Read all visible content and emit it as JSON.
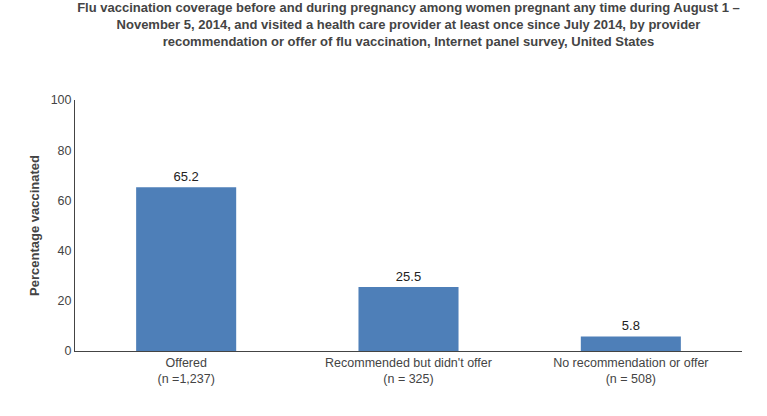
{
  "chart_data": {
    "type": "bar",
    "title": "Flu vaccination coverage before and during pregnancy among women pregnant any time during August 1 –\nNovember 5, 2014, and visited a health care provider at least once since July 2014, by provider\nrecommendation or offer of flu vaccination, Internet panel survey, United States",
    "categories": [
      "Offered\n(n =1,237)",
      "Recommended but didn't offer\n(n = 325)",
      "No recommendation or offer\n(n = 508)"
    ],
    "values": [
      65.2,
      25.5,
      5.8
    ],
    "color": "#4E7FB8",
    "ylabel": "Percentage vaccinated",
    "ylim": [
      0,
      100
    ],
    "yticks": [
      0,
      20,
      40,
      60,
      80,
      100
    ],
    "grid": false,
    "data_labels": true
  }
}
